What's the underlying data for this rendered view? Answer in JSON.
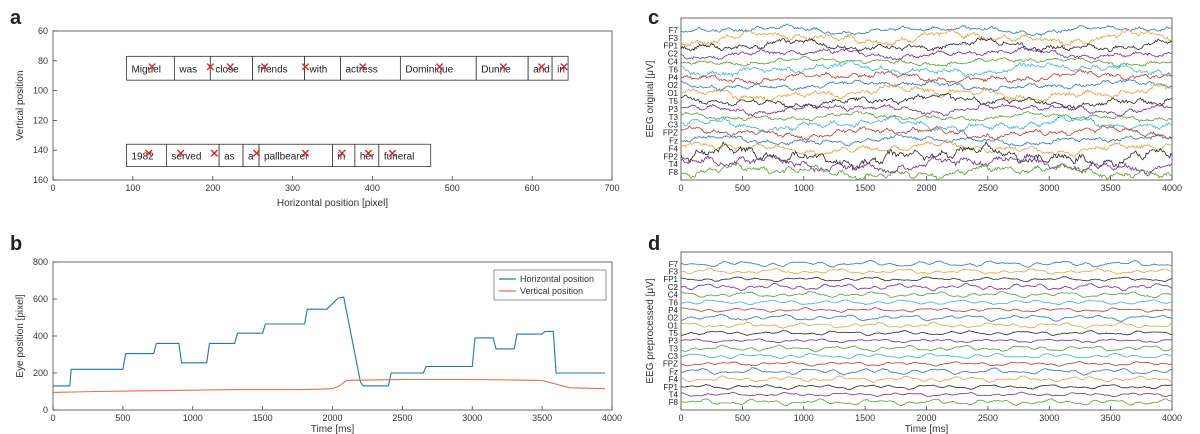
{
  "colors": {
    "blue": "#1f77b4",
    "orange": "#e8704a",
    "red": "#d62728",
    "eeg_cycle": [
      "#2a78c2",
      "#e8a03a",
      "#2a2a2a",
      "#7a2a99",
      "#5aa02c",
      "#39b6d8",
      "#c0392b"
    ]
  },
  "chart_data": [
    {
      "panel": "a",
      "type": "scatter",
      "xlabel": "Horizontal position [pixel]",
      "ylabel": "Vertical position",
      "xlim": [
        0,
        700
      ],
      "ylim": [
        160,
        60
      ],
      "xticks": [
        0,
        100,
        200,
        300,
        400,
        500,
        600,
        700
      ],
      "yticks": [
        60,
        80,
        100,
        120,
        140,
        160
      ],
      "line1_words": [
        {
          "text": "Miguel",
          "x0": 92,
          "x1": 152
        },
        {
          "text": "was",
          "x0": 152,
          "x1": 197
        },
        {
          "text": "close",
          "x0": 197,
          "x1": 250
        },
        {
          "text": "friends",
          "x0": 250,
          "x1": 315
        },
        {
          "text": "with",
          "x0": 315,
          "x1": 360
        },
        {
          "text": "actress",
          "x0": 360,
          "x1": 435
        },
        {
          "text": "Dominique",
          "x0": 435,
          "x1": 530
        },
        {
          "text": "Dunne",
          "x0": 530,
          "x1": 595
        },
        {
          "text": "and",
          "x0": 595,
          "x1": 625
        },
        {
          "text": "in",
          "x0": 625,
          "x1": 645
        }
      ],
      "line1_y": [
        77,
        93
      ],
      "line2_words": [
        {
          "text": "1982",
          "x0": 92,
          "x1": 142
        },
        {
          "text": "served",
          "x0": 142,
          "x1": 208
        },
        {
          "text": "as",
          "x0": 208,
          "x1": 238
        },
        {
          "text": "a",
          "x0": 238,
          "x1": 258
        },
        {
          "text": "pallbearer",
          "x0": 258,
          "x1": 350
        },
        {
          "text": "in",
          "x0": 350,
          "x1": 378
        },
        {
          "text": "her",
          "x0": 378,
          "x1": 408
        },
        {
          "text": "funeral",
          "x0": 408,
          "x1": 473
        }
      ],
      "line2_y": [
        136,
        151
      ],
      "fixations": [
        [
          124,
          84
        ],
        [
          197,
          84
        ],
        [
          222,
          84
        ],
        [
          265,
          84
        ],
        [
          316,
          84
        ],
        [
          388,
          84
        ],
        [
          484,
          84
        ],
        [
          564,
          84
        ],
        [
          612,
          84
        ],
        [
          640,
          84
        ],
        [
          120,
          142
        ],
        [
          160,
          142
        ],
        [
          202,
          142
        ],
        [
          255,
          142
        ],
        [
          316,
          142
        ],
        [
          362,
          142
        ],
        [
          395,
          142
        ],
        [
          425,
          142
        ]
      ]
    },
    {
      "panel": "b",
      "type": "line",
      "xlabel": "Time [ms]",
      "ylabel": "Eye position [pixel]",
      "xlim": [
        0,
        4000
      ],
      "ylim": [
        0,
        800
      ],
      "xticks": [
        0,
        500,
        1000,
        1500,
        2000,
        2500,
        3000,
        3500,
        4000
      ],
      "yticks": [
        0,
        200,
        400,
        600,
        800
      ],
      "series": [
        {
          "name": "Horizontal position",
          "x": [
            0,
            120,
            130,
            500,
            520,
            720,
            740,
            900,
            920,
            1100,
            1120,
            1300,
            1320,
            1500,
            1520,
            1800,
            1820,
            1960,
            2040,
            2080,
            2200,
            2220,
            2400,
            2420,
            2650,
            2670,
            3000,
            3020,
            3150,
            3170,
            3300,
            3320,
            3500,
            3520,
            3580,
            3600,
            3800,
            3950
          ],
          "y": [
            130,
            130,
            220,
            220,
            305,
            305,
            360,
            360,
            255,
            255,
            360,
            360,
            415,
            415,
            465,
            465,
            545,
            545,
            605,
            610,
            150,
            130,
            130,
            200,
            200,
            235,
            235,
            390,
            390,
            330,
            330,
            410,
            410,
            425,
            425,
            200,
            200,
            200
          ]
        },
        {
          "name": "Vertical position",
          "x": [
            0,
            300,
            800,
            1300,
            1800,
            2000,
            2050,
            2100,
            2500,
            3000,
            3500,
            3700,
            3950
          ],
          "y": [
            95,
            100,
            105,
            110,
            110,
            115,
            130,
            160,
            165,
            165,
            160,
            120,
            115
          ]
        }
      ],
      "legend": "top-right"
    },
    {
      "panel": "c",
      "type": "line",
      "xlabel": "",
      "ylabel": "EEG original [μV]",
      "xlim": [
        0,
        4000
      ],
      "xticks": [
        0,
        500,
        1000,
        1500,
        2000,
        2500,
        3000,
        3500,
        4000
      ],
      "channels": [
        "F7",
        "F3",
        "FP1",
        "C2",
        "C4",
        "T6",
        "P4",
        "O2",
        "O1",
        "T5",
        "P3",
        "T3",
        "C3",
        "FPZ",
        "Fz",
        "F4",
        "FP2",
        "T4",
        "F8"
      ]
    },
    {
      "panel": "d",
      "type": "line",
      "xlabel": "Time [ms]",
      "ylabel": "EEG preprocessed [μV]",
      "xlim": [
        0,
        4000
      ],
      "xticks": [
        0,
        500,
        1000,
        1500,
        2000,
        2500,
        3000,
        3500,
        4000
      ],
      "channels": [
        "F7",
        "F3",
        "FP1",
        "C2",
        "C4",
        "T6",
        "P4",
        "O2",
        "O1",
        "T5",
        "P3",
        "T3",
        "C3",
        "FPZ",
        "Fz",
        "F4",
        "FP1",
        "T4",
        "F8"
      ]
    }
  ]
}
